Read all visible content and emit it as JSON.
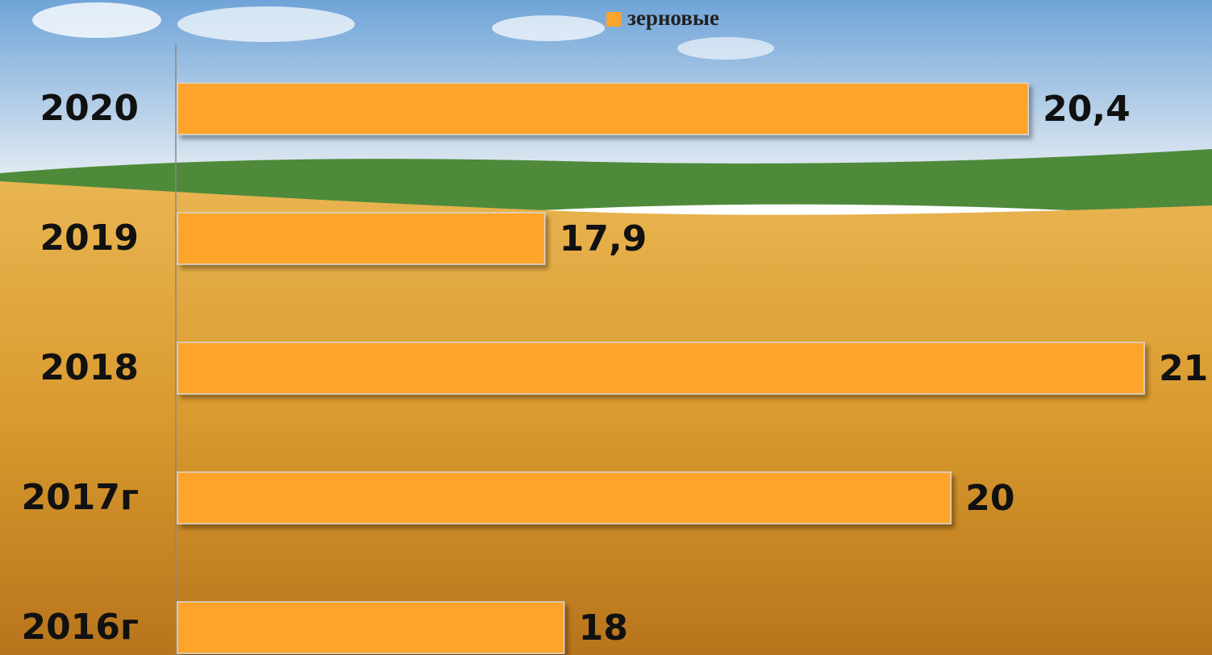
{
  "chart_data": {
    "type": "bar",
    "orientation": "horizontal",
    "legend": "зерновые",
    "categories": [
      "2020",
      "2019",
      "2018",
      "2017г",
      "2016г"
    ],
    "values": [
      20.4,
      17.9,
      21,
      20,
      18
    ],
    "value_labels": [
      "20,4",
      "17,9",
      "21",
      "20",
      "18"
    ],
    "color": "#ffa42a",
    "xlim": [
      16,
      21.35
    ]
  }
}
